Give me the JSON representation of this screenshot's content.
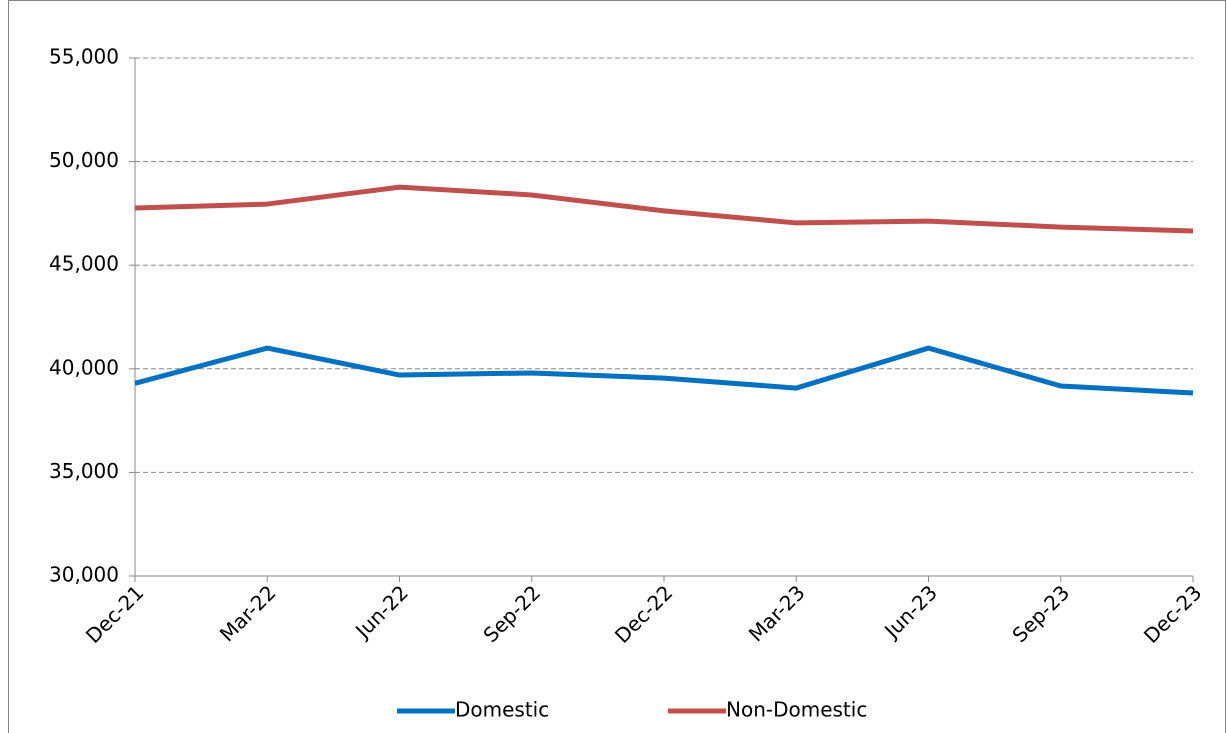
{
  "chart_data": {
    "type": "line",
    "categories": [
      "Dec-21",
      "Mar-22",
      "Jun-22",
      "Sep-22",
      "Dec-22",
      "Mar-23",
      "Jun-23",
      "Sep-23",
      "Dec-23"
    ],
    "series": [
      {
        "name": "Domestic",
        "color": "#0070c0",
        "values": [
          39300,
          41000,
          39700,
          39800,
          39550,
          39070,
          41000,
          39170,
          38830
        ]
      },
      {
        "name": "Non-Domestic",
        "color": "#c0504d",
        "values": [
          47760,
          47950,
          48770,
          48390,
          47620,
          47040,
          47130,
          46840,
          46650
        ]
      }
    ],
    "ylim": [
      30000,
      55000
    ],
    "yticks": [
      {
        "value": 30000,
        "label": "30,000"
      },
      {
        "value": 35000,
        "label": "35,000"
      },
      {
        "value": 40000,
        "label": "40,000"
      },
      {
        "value": 45000,
        "label": "45,000"
      },
      {
        "value": 50000,
        "label": "50,000"
      },
      {
        "value": 55000,
        "label": "55,000"
      }
    ],
    "grid": true,
    "legend": "bottom"
  }
}
